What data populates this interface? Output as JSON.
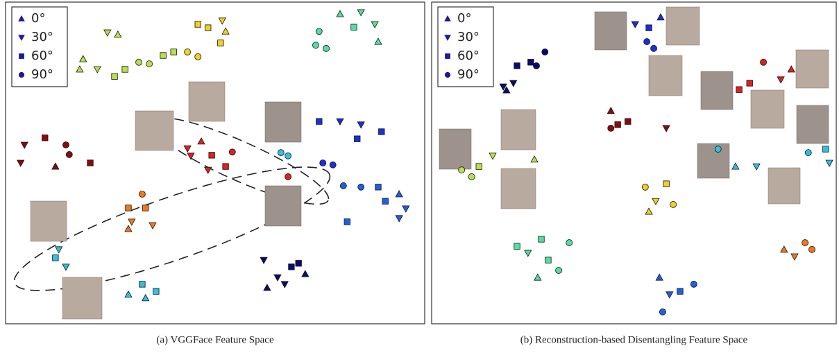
{
  "chart_data": [
    {
      "type": "scatter",
      "caption": "(a)  VGGFace Feature Space",
      "xlim": [
        0,
        100
      ],
      "ylim": [
        0,
        100
      ],
      "legend": "upper left",
      "series": [
        {
          "name": "0°",
          "marker": "triangle-up",
          "color": "#1a1aa0",
          "x": [
            26.8,
            18.5,
            17.7,
            52.5,
            79.8,
            88.9,
            11.9,
            46.7,
            29.3,
            29.3,
            33.4,
            93.9,
            62.4,
            71.5
          ],
          "y": [
            89.9,
            82.3,
            79.1,
            90.9,
            96.3,
            87.7,
            48.9,
            56.7,
            29.5,
            9.1,
            8.0,
            40.3,
            11.2,
            15.5
          ],
          "colors": [
            "#b8e04a",
            "#b8e04a",
            "#b8e04a",
            "#f0d020",
            "#50e0a0",
            "#50e0a0",
            "#8b0a0a",
            "#e02020",
            "#f07818",
            "#30c0e0",
            "#30c0e0",
            "#2060e0",
            "#0a0a70",
            "#0a0a70"
          ]
        },
        {
          "name": "30°",
          "marker": "triangle-down",
          "color": "#1a1aa0",
          "x": [
            24.3,
            21.9,
            51.7,
            84.8,
            88.1,
            4.5,
            3.6,
            43.4,
            44.2,
            48.3,
            30.1,
            35.1,
            12.7,
            14.4,
            79.8,
            84.8,
            95.5,
            93.9,
            61.6,
            64.9,
            66.6
          ],
          "y": [
            90.5,
            79.1,
            94.2,
            96.8,
            93.1,
            55.6,
            50.0,
            54.5,
            52.2,
            47.8,
            31.7,
            30.6,
            23.1,
            17.7,
            62.9,
            61.9,
            35.8,
            32.8,
            19.8,
            14.4,
            12.3
          ],
          "colors": [
            "#b8e04a",
            "#b8e04a",
            "#f0d020",
            "#50e0a0",
            "#50e0a0",
            "#8b0a0a",
            "#8b0a0a",
            "#e02020",
            "#e02020",
            "#e02020",
            "#f07818",
            "#f07818",
            "#30c0e0",
            "#30c0e0",
            "#1830e0",
            "#1830e0",
            "#2060e0",
            "#2060e0",
            "#0a0a70",
            "#0a0a70",
            "#0a0a70"
          ]
        },
        {
          "name": "60°",
          "marker": "square",
          "color": "#1a1aa0",
          "x": [
            26.0,
            28.5,
            37.6,
            40.1,
            45.9,
            51.3,
            48.3,
            83.1,
            9.4,
            20.2,
            49.2,
            52.5,
            29.3,
            33.4,
            11.9,
            32.6,
            35.9,
            74.8,
            89.7,
            83.9,
            88.9,
            90.6,
            81.5,
            68.2,
            69.9
          ],
          "y": [
            76.9,
            79.1,
            83.4,
            84.5,
            93.1,
            87.3,
            92.0,
            92.2,
            57.8,
            50.0,
            52.4,
            48.9,
            36.0,
            36.0,
            20.5,
            12.3,
            10.1,
            62.9,
            59.7,
            57.5,
            42.5,
            38.1,
            31.7,
            17.7,
            18.8
          ],
          "colors": [
            "#b8e04a",
            "#b8e04a",
            "#b8e04a",
            "#b8e04a",
            "#f0d020",
            "#f0d020",
            "#f0d020",
            "#50e0a0",
            "#8b0a0a",
            "#8b0a0a",
            "#e02020",
            "#e02020",
            "#f07818",
            "#f07818",
            "#30c0e0",
            "#30c0e0",
            "#30c0e0",
            "#1830e0",
            "#1830e0",
            "#1830e0",
            "#2060e0",
            "#2060e0",
            "#2060e0",
            "#0a0a70",
            "#0a0a70"
          ]
        },
        {
          "name": "90°",
          "marker": "circle",
          "color": "#1a1aa0",
          "x": [
            34.3,
            31.8,
            43.4,
            45.9,
            74.0,
            74.8,
            76.5,
            14.4,
            15.2,
            54.1,
            67.4,
            32.6,
            65.7,
            67.4,
            75.7,
            78.1,
            80.6,
            84.8
          ],
          "y": [
            80.8,
            81.3,
            84.5,
            83.0,
            86.6,
            90.9,
            85.6,
            55.6,
            52.6,
            53.4,
            45.7,
            40.3,
            53.2,
            52.2,
            50.0,
            49.4,
            42.9,
            42.5
          ],
          "colors": [
            "#b8e04a",
            "#b8e04a",
            "#f0d020",
            "#f0d020",
            "#50e0a0",
            "#50e0a0",
            "#50e0a0",
            "#8b0a0a",
            "#8b0a0a",
            "#e02020",
            "#e02020",
            "#f07818",
            "#30c0e0",
            "#30c0e0",
            "#1830e0",
            "#1830e0",
            "#2060e0",
            "#2060e0"
          ]
        }
      ]
    },
    {
      "type": "scatter",
      "caption": "(b)  Reconstruction-based Disentangling Feature Space",
      "xlim": [
        0,
        100
      ],
      "ylim": [
        0,
        100
      ],
      "legend": "upper left",
      "series": [
        {
          "name": "0°",
          "marker": "triangle-up",
          "color": "#1a1aa0",
          "x": [
            18.5,
            56.6,
            88.9,
            44.3,
            25.4,
            75.1,
            53.7,
            87.1,
            26.2,
            56.3
          ],
          "y": [
            72.6,
            95.3,
            79.1,
            66.2,
            51.1,
            48.9,
            34.9,
            23.1,
            14.4,
            14.4
          ],
          "colors": [
            "#0a0a70",
            "#1830e0",
            "#e02020",
            "#8b0a0a",
            "#b8e04a",
            "#30c0e0",
            "#f0d020",
            "#f07818",
            "#50e0a0",
            "#2060e0"
          ]
        },
        {
          "name": "30°",
          "marker": "triangle-down",
          "color": "#1a1aa0",
          "x": [
            17.7,
            20.2,
            50.3,
            86.3,
            58.0,
            15.1,
            80.3,
            98.3,
            55.4,
            89.7,
            23.8,
            58.8
          ],
          "y": [
            73.7,
            74.8,
            93.1,
            75.9,
            60.8,
            52.2,
            48.9,
            50.0,
            38.1,
            20.9,
            22.0,
            9.1
          ],
          "colors": [
            "#0a0a70",
            "#0a0a70",
            "#1830e0",
            "#e02020",
            "#8b0a0a",
            "#b8e04a",
            "#30c0e0",
            "#30c0e0",
            "#f0d020",
            "#f07818",
            "#50e0a0",
            "#2060e0"
          ]
        },
        {
          "name": "60°",
          "marker": "square",
          "color": "#1a1aa0",
          "x": [
            21.1,
            24.5,
            53.7,
            76.0,
            78.6,
            46.0,
            48.5,
            11.7,
            97.4,
            58.0,
            21.1,
            28.8,
            27.1,
            61.4
          ],
          "y": [
            80.2,
            81.3,
            92.0,
            72.8,
            74.8,
            61.9,
            62.9,
            48.9,
            54.3,
            43.5,
            24.1,
            19.8,
            26.3,
            10.1
          ],
          "colors": [
            "#0a0a70",
            "#0a0a70",
            "#1830e0",
            "#e02020",
            "#e02020",
            "#8b0a0a",
            "#8b0a0a",
            "#b8e04a",
            "#30c0e0",
            "#f0d020",
            "#50e0a0",
            "#50e0a0",
            "#50e0a0",
            "#2060e0"
          ]
        },
        {
          "name": "90°",
          "marker": "circle",
          "color": "#1a1aa0",
          "x": [
            28.0,
            25.9,
            53.2,
            54.9,
            82.0,
            44.3,
            7.4,
            9.9,
            70.8,
            93.1,
            52.8,
            59.7,
            92.3,
            94.0,
            34.0,
            31.4,
            57.1,
            64.8
          ],
          "y": [
            84.5,
            80.2,
            87.7,
            85.6,
            81.3,
            60.8,
            47.8,
            45.7,
            54.3,
            53.2,
            42.5,
            37.1,
            25.2,
            23.1,
            25.2,
            16.6,
            3.7,
            12.3
          ],
          "colors": [
            "#0a0a70",
            "#0a0a70",
            "#1830e0",
            "#1830e0",
            "#e02020",
            "#8b0a0a",
            "#b8e04a",
            "#b8e04a",
            "#30c0e0",
            "#30c0e0",
            "#f0d020",
            "#f0d020",
            "#f07818",
            "#f07818",
            "#50e0a0",
            "#50e0a0",
            "#2060e0",
            "#2060e0"
          ]
        }
      ]
    }
  ]
}
